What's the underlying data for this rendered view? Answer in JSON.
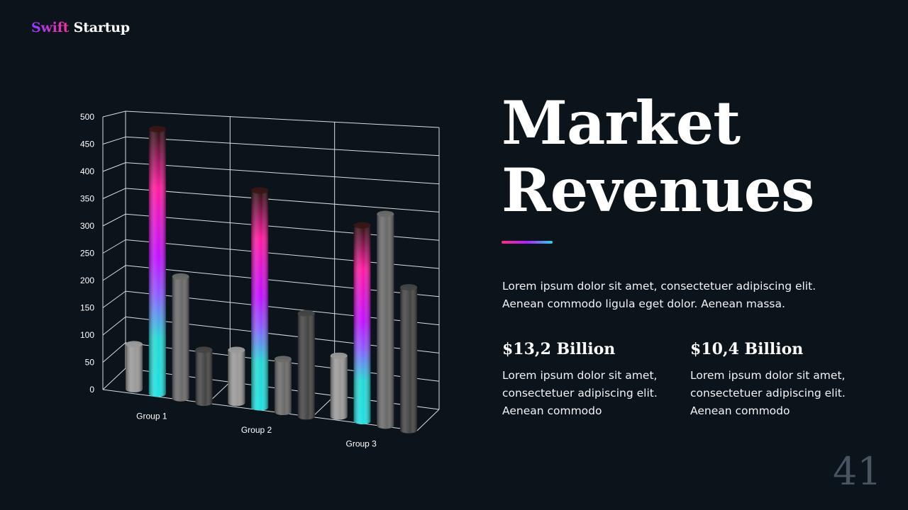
{
  "brand": {
    "part1": "Swift",
    "part2": "Startup"
  },
  "title": {
    "line1": "Market",
    "line2": "Revenues"
  },
  "description": "Lorem ipsum dolor sit amet, consectetuer adipiscing elit. Aenean commodo ligula eget dolor.  Aenean massa.",
  "stats": [
    {
      "value": "$13,2 Billion",
      "text": "Lorem ipsum dolor sit amet, consectetuer adipiscing elit. Aenean commodo"
    },
    {
      "value": "$10,4 Billion",
      "text": "Lorem ipsum dolor sit amet, consectetuer adipiscing elit. Aenean commodo"
    }
  ],
  "page_number": "41",
  "chart_data": {
    "type": "bar",
    "style": "3d-cylinder",
    "categories": [
      "Group 1",
      "Group 2",
      "Group 3"
    ],
    "series": [
      {
        "values": [
          85,
          100,
          115
        ],
        "color": "#9a9a9a"
      },
      {
        "values": [
          500,
          410,
          370
        ],
        "color": "gradient"
      },
      {
        "values": [
          230,
          100,
          400
        ],
        "color": "#6a6a6a"
      },
      {
        "values": [
          100,
          195,
          270
        ],
        "color": "#444444"
      }
    ],
    "ylim": [
      0,
      500
    ],
    "yticks": [
      "0",
      "50",
      "100",
      "150",
      "200",
      "250",
      "300",
      "350",
      "400",
      "450",
      "500"
    ],
    "grid": true,
    "gradient_colors": [
      "#1ee0e0",
      "#8a5cff",
      "#c010ff",
      "#ff1aa0",
      "#3a1a1a"
    ]
  }
}
